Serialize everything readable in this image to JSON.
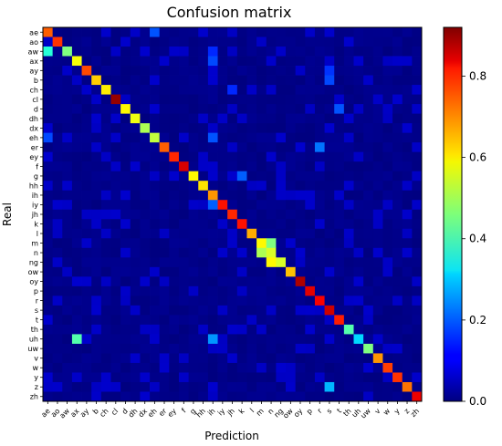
{
  "chart_data": {
    "type": "heatmap",
    "title": "Confusion matrix",
    "xlabel": "Prediction",
    "ylabel": "Real",
    "labels": [
      "ae",
      "ao",
      "aw",
      "ax",
      "ay",
      "b",
      "ch",
      "cl",
      "d",
      "dh",
      "dx",
      "eh",
      "er",
      "ey",
      "f",
      "g",
      "hh",
      "ih",
      "iy",
      "jh",
      "k",
      "l",
      "m",
      "n",
      "ng",
      "ow",
      "oy",
      "p",
      "r",
      "s",
      "t",
      "th",
      "uh",
      "uw",
      "v",
      "w",
      "y",
      "z",
      "zh"
    ],
    "x_tick_labels": [
      "ae",
      "ao",
      "aw",
      "ax",
      "ay",
      "b",
      "ch",
      "cl",
      "d",
      "dh",
      "dx",
      "eh",
      "er",
      "ey",
      "f",
      "g",
      "hh",
      "ih",
      "iy",
      "jh",
      "k",
      "l",
      "m",
      "n",
      "ng",
      "ow",
      "oy",
      "p",
      "r",
      "s",
      "t",
      "th",
      "uh",
      "uw",
      "v",
      "w",
      "y",
      "z",
      "zh"
    ],
    "colormap": "jet",
    "colorbar": {
      "range": [
        0.0,
        0.92
      ],
      "ticks": [
        "0.0",
        "0.2",
        "0.4",
        "0.6",
        "0.8"
      ],
      "tick_values": [
        0.0,
        0.2,
        0.4,
        0.6,
        0.8
      ]
    },
    "grid": false,
    "diagonal": [
      0.72,
      0.76,
      0.46,
      0.57,
      0.74,
      0.62,
      0.59,
      0.9,
      0.58,
      0.56,
      0.5,
      0.52,
      0.72,
      0.77,
      0.84,
      0.58,
      0.6,
      0.67,
      0.79,
      0.77,
      0.79,
      0.65,
      0.58,
      0.54,
      0.54,
      0.63,
      0.88,
      0.83,
      0.81,
      0.85,
      0.78,
      0.42,
      0.31,
      0.46,
      0.67,
      0.75,
      0.76,
      0.7,
      0.82
    ],
    "off_diagonal": [
      {
        "real": "ae",
        "pred": "eh",
        "value": 0.19
      },
      {
        "real": "aw",
        "pred": "ae",
        "value": 0.38
      },
      {
        "real": "aw",
        "pred": "ih",
        "value": 0.15
      },
      {
        "real": "ax",
        "pred": "ih",
        "value": 0.18
      },
      {
        "real": "ch",
        "pred": "jh",
        "value": 0.15
      },
      {
        "real": "ay",
        "pred": "s",
        "value": 0.16
      },
      {
        "real": "b",
        "pred": "s",
        "value": 0.18
      },
      {
        "real": "d",
        "pred": "t",
        "value": 0.19
      },
      {
        "real": "eh",
        "pred": "ae",
        "value": 0.18
      },
      {
        "real": "eh",
        "pred": "ih",
        "value": 0.19
      },
      {
        "real": "er",
        "pred": "r",
        "value": 0.22
      },
      {
        "real": "g",
        "pred": "k",
        "value": 0.2
      },
      {
        "real": "iy",
        "pred": "ih",
        "value": 0.2
      },
      {
        "real": "m",
        "pred": "n",
        "value": 0.46
      },
      {
        "real": "n",
        "pred": "m",
        "value": 0.5
      },
      {
        "real": "ng",
        "pred": "n",
        "value": 0.58
      },
      {
        "real": "uh",
        "pred": "ax",
        "value": 0.42
      },
      {
        "real": "uh",
        "pred": "ih",
        "value": 0.25
      },
      {
        "real": "z",
        "pred": "s",
        "value": 0.28
      }
    ]
  }
}
